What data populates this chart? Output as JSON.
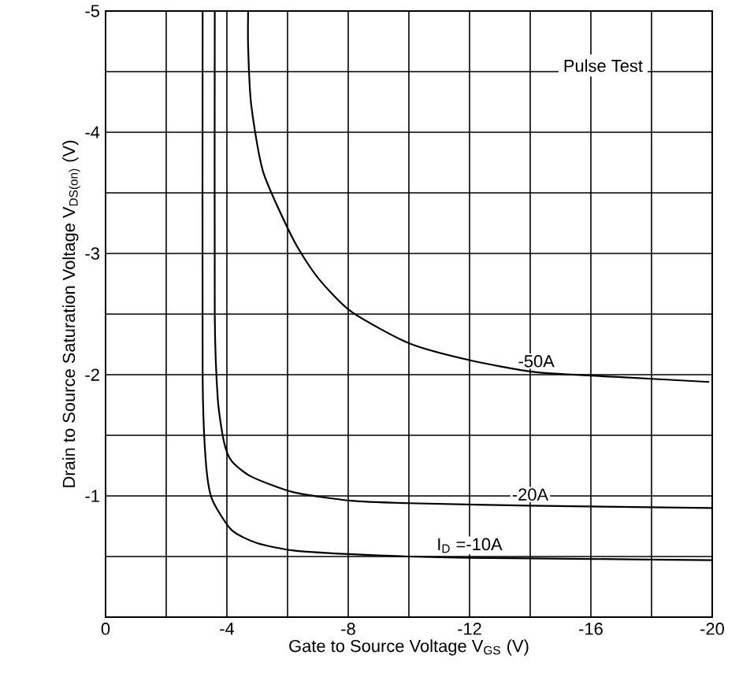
{
  "chart_data": {
    "type": "line",
    "xlabel": "Gate to Source Voltage   V$_{GS}$ (V)",
    "ylabel": "Drain to Source Saturation Voltage   V$_{DS(on)}$ (V)",
    "xlim": [
      0,
      -20
    ],
    "ylim": [
      0,
      -5
    ],
    "xticks": [
      0,
      {
        "value": -2,
        "label": null
      },
      -4,
      {
        "value": -6,
        "label": null
      },
      -8,
      {
        "value": -10,
        "label": null
      },
      -12,
      {
        "value": -14,
        "label": null
      },
      -16,
      {
        "value": -18,
        "label": null
      },
      -20
    ],
    "yticks": [
      {
        "value": -0.5,
        "label": null
      },
      -1,
      {
        "value": -1.5,
        "label": null
      },
      -2,
      {
        "value": -2.5,
        "label": null
      },
      -3,
      {
        "value": -3.5,
        "label": null
      },
      -4,
      {
        "value": -4.5,
        "label": null
      },
      -5
    ],
    "grid": true,
    "marker": "none",
    "line_style": "solid",
    "series": [
      {
        "name": "I$_{D}$ =-10A",
        "color": "#000000",
        "x": [
          -3.2,
          -3.2,
          -3.3,
          -3.5,
          -4.15,
          -5.0,
          -6.2,
          -8.0,
          -10.0,
          -12.0,
          -16.0,
          -20.0
        ],
        "values": [
          -5.0,
          -2.0,
          -1.3,
          -0.98,
          -0.72,
          -0.61,
          -0.55,
          -0.52,
          -0.5,
          -0.49,
          -0.48,
          -0.47
        ]
      },
      {
        "name": "-20A",
        "color": "#000000",
        "x": [
          -3.6,
          -3.6,
          -3.7,
          -3.9,
          -4.15,
          -4.8,
          -6.2,
          -8.1,
          -10.0,
          -14.0,
          -20.0
        ],
        "values": [
          -5.0,
          -2.5,
          -1.8,
          -1.45,
          -1.29,
          -1.16,
          -1.03,
          -0.96,
          -0.94,
          -0.92,
          -0.9
        ]
      },
      {
        "name": "-50A",
        "color": "#000000",
        "x": [
          -4.7,
          -4.7,
          -4.8,
          -5.2,
          -6.2,
          -7.0,
          -8.1,
          -10.0,
          -12.0,
          -14.2,
          -17.0,
          -19.9
        ],
        "values": [
          -5.0,
          -4.7,
          -4.23,
          -3.67,
          -3.11,
          -2.8,
          -2.52,
          -2.26,
          -2.12,
          -2.02,
          -1.98,
          -1.94
        ]
      }
    ],
    "annotations": [
      "Pulse Test"
    ]
  }
}
